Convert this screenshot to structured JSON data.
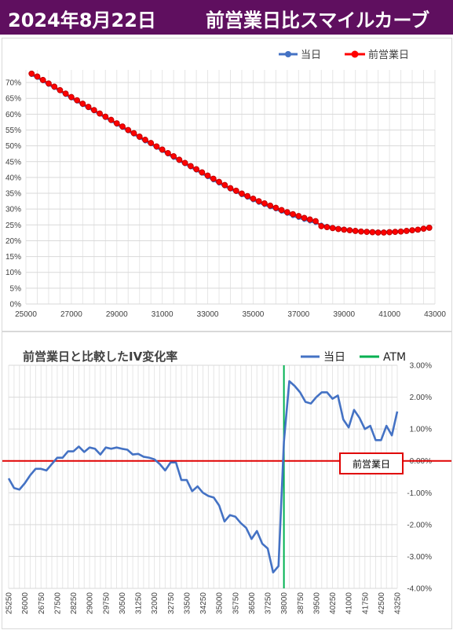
{
  "header": {
    "date": "2024年8月22日",
    "title": "前営業日比スマイルカーブ"
  },
  "colors": {
    "header_bg": "#5f0f5f",
    "today": "#4472c4",
    "prev": "#ff0000",
    "prev_marker_fill": "#ff0000",
    "atm": "#00b050",
    "iv_line": "#4472c4",
    "zero_line": "#e00000"
  },
  "chart_data": [
    {
      "type": "line",
      "title": "",
      "xlim": [
        25000,
        43000
      ],
      "ylim": [
        0,
        72
      ],
      "x_ticks": [
        25000,
        27000,
        29000,
        31000,
        33000,
        35000,
        37000,
        39000,
        41000,
        43000
      ],
      "y_ticks": [
        0,
        5,
        10,
        15,
        20,
        25,
        30,
        35,
        40,
        45,
        50,
        55,
        60,
        65,
        70
      ],
      "y_tick_labels": [
        "0%",
        "5%",
        "10%",
        "15%",
        "20%",
        "25%",
        "30%",
        "35%",
        "40%",
        "45%",
        "50%",
        "55%",
        "60%",
        "65%",
        "70%"
      ],
      "grid": true,
      "legend": [
        "当日",
        "前営業日"
      ],
      "legend_position": "top-right",
      "x_start": 25250,
      "x_step": 250,
      "series": [
        {
          "name": "当日",
          "values": [
            72.4,
            71.5,
            70.4,
            69.3,
            68.3,
            67.3,
            66.1,
            65.0,
            64.0,
            62.9,
            61.9,
            60.9,
            59.9,
            58.8,
            57.8,
            56.7,
            55.7,
            54.6,
            53.6,
            52.5,
            51.4,
            50.5,
            49.4,
            48.4,
            47.3,
            46.2,
            45.2,
            44.2,
            43.2,
            42.2,
            41.2,
            40.1,
            39.1,
            38.1,
            37.2,
            36.2,
            35.4,
            34.4,
            33.6,
            32.8,
            32.0,
            31.3,
            30.6,
            29.9,
            29.2,
            28.5,
            27.8,
            27.2,
            26.6,
            26.1,
            25.6,
            25.1,
            24.7,
            24.3,
            24.0,
            23.8,
            23.5,
            23.3,
            23.1,
            23.0,
            22.9,
            22.9,
            22.9,
            22.9,
            23.0,
            23.1,
            23.2,
            23.4,
            23.6,
            23.9,
            24.2
          ]
        },
        {
          "name": "前営業日",
          "values": [
            72.8,
            71.9,
            70.8,
            69.7,
            68.7,
            67.6,
            66.5,
            65.4,
            64.4,
            63.3,
            62.3,
            61.3,
            60.2,
            59.2,
            58.2,
            57.1,
            56.1,
            55.0,
            54.0,
            52.9,
            51.9,
            50.9,
            49.8,
            48.8,
            47.7,
            46.7,
            45.6,
            44.6,
            43.6,
            42.6,
            41.6,
            40.6,
            39.6,
            38.6,
            37.6,
            36.6,
            35.8,
            34.9,
            34.1,
            33.3,
            32.5,
            31.8,
            31.1,
            30.4,
            29.7,
            29.0,
            28.4,
            27.8,
            27.2,
            26.7,
            26.2,
            24.6,
            24.3,
            24.0,
            23.7,
            23.5,
            23.3,
            23.1,
            22.9,
            22.8,
            22.7,
            22.6,
            22.6,
            22.7,
            22.8,
            22.9,
            23.1,
            23.3,
            23.5,
            23.8,
            24.1
          ]
        }
      ]
    },
    {
      "type": "line",
      "title": "前営業日と比較したIV変化率",
      "xlim": [
        25250,
        43250
      ],
      "ylim": [
        -4.0,
        3.0
      ],
      "x_tick_labels": [
        "25250",
        "26000",
        "26750",
        "27500",
        "28250",
        "29000",
        "29750",
        "30500",
        "31250",
        "32000",
        "32750",
        "33500",
        "34250",
        "35000",
        "35750",
        "36500",
        "37250",
        "38000",
        "38750",
        "39500",
        "40250",
        "41000",
        "41750",
        "42500",
        "43250"
      ],
      "y_tick_values": [
        3.0,
        2.0,
        1.0,
        0.0,
        -1.0,
        -2.0,
        -3.0,
        -4.0
      ],
      "y_tick_labels": [
        "3.00%",
        "2.00%",
        "1.00%",
        "0.00%",
        "-1.00%",
        "-2.00%",
        "-3.00%",
        "-4.00%"
      ],
      "grid": true,
      "legend": [
        "当日",
        "ATM"
      ],
      "legend_position": "top-right",
      "atm_x": 38000,
      "annotation": "前営業日",
      "x_start": 25250,
      "x_step": 250,
      "series": [
        {
          "name": "当日",
          "values": [
            -0.55,
            -0.85,
            -0.9,
            -0.7,
            -0.45,
            -0.25,
            -0.25,
            -0.3,
            -0.1,
            0.1,
            0.1,
            0.3,
            0.3,
            0.45,
            0.28,
            0.42,
            0.38,
            0.2,
            0.42,
            0.38,
            0.42,
            0.38,
            0.35,
            0.2,
            0.22,
            0.13,
            0.1,
            0.05,
            -0.1,
            -0.3,
            -0.05,
            -0.05,
            -0.6,
            -0.6,
            -0.95,
            -0.8,
            -1.0,
            -1.1,
            -1.15,
            -1.4,
            -1.9,
            -1.7,
            -1.75,
            -1.95,
            -2.1,
            -2.45,
            -2.2,
            -2.6,
            -2.75,
            -3.5,
            -3.3,
            0.6,
            2.5,
            2.35,
            2.15,
            1.85,
            1.8,
            2.0,
            2.15,
            2.15,
            1.95,
            2.05,
            1.3,
            1.05,
            1.6,
            1.35,
            1.0,
            1.1,
            0.65,
            0.65,
            1.1,
            0.8,
            1.55
          ]
        }
      ]
    }
  ]
}
